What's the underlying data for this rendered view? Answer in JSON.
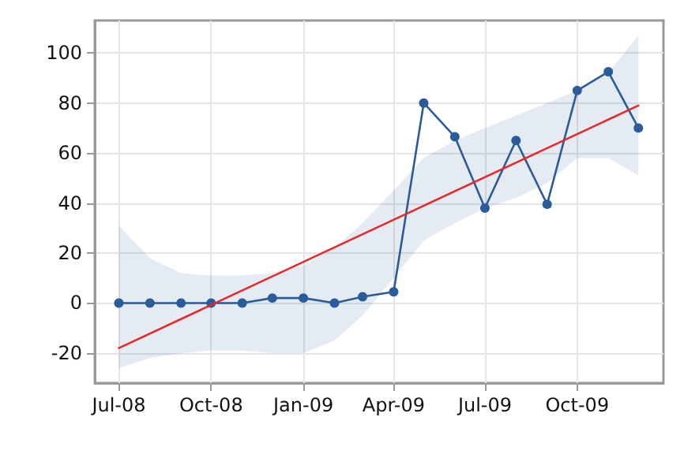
{
  "chart_data": {
    "type": "line",
    "x": [
      "2008-07-01",
      "2008-08-01",
      "2008-09-01",
      "2008-10-01",
      "2008-11-01",
      "2008-12-01",
      "2009-01-01",
      "2009-02-01",
      "2009-03-01",
      "2009-04-01",
      "2009-05-01",
      "2009-06-01",
      "2009-07-01",
      "2009-08-01",
      "2009-09-01",
      "2009-10-01",
      "2009-11-01",
      "2009-12-01"
    ],
    "series": [
      {
        "color": "#2a5b9b",
        "marker": "circle",
        "values": [
          0,
          0,
          0,
          0,
          0,
          2,
          2,
          0,
          2.5,
          4.5,
          80,
          66.5,
          38,
          65,
          39.5,
          85,
          92.5,
          70
        ],
        "lower": [
          -26,
          -22,
          -20,
          -19,
          -19,
          -20,
          -20,
          -15,
          -5,
          10,
          25,
          32,
          38,
          42,
          48,
          58,
          58,
          51
        ],
        "upper": [
          31,
          18,
          12,
          11,
          11,
          12,
          15,
          22,
          32,
          45,
          58,
          65,
          70,
          75,
          80,
          85,
          92,
          107
        ]
      },
      {
        "type": "line",
        "color": "#e8292b",
        "marker": "none",
        "x": [
          "2008-07-01",
          "2009-12-01"
        ],
        "values": [
          -18,
          79
        ]
      }
    ],
    "xlim": [
      "2008-06-07",
      "2009-12-26"
    ],
    "xticks": [
      {
        "value": "2008-07-01",
        "label": "Jul-08"
      },
      {
        "value": "2008-10-01",
        "label": "Oct-08"
      },
      {
        "value": "2009-01-01",
        "label": "Jan-09"
      },
      {
        "value": "2009-04-01",
        "label": "Apr-09"
      },
      {
        "value": "2009-07-01",
        "label": "Jul-09"
      },
      {
        "value": "2009-10-01",
        "label": "Oct-09"
      }
    ],
    "ylim": [
      -32,
      113
    ],
    "yticks": [
      -20,
      0,
      20,
      40,
      60,
      80,
      100
    ],
    "grid": true
  }
}
